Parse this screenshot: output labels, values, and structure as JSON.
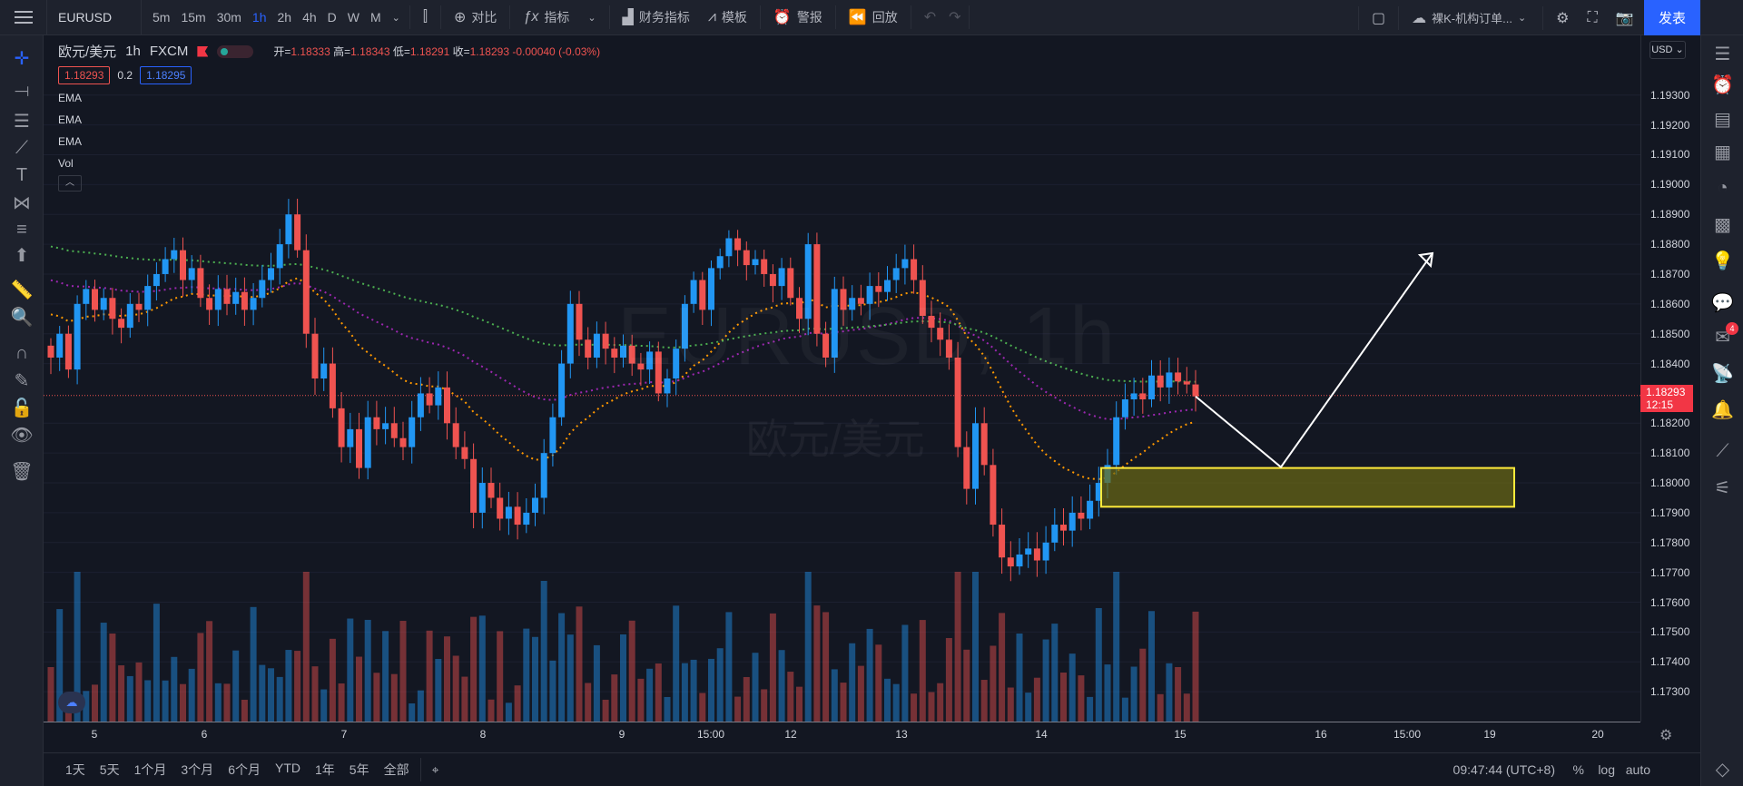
{
  "toolbar": {
    "symbol": "EURUSD",
    "timeframes": [
      "5m",
      "15m",
      "30m",
      "1h",
      "2h",
      "4h",
      "D",
      "W",
      "M"
    ],
    "active_timeframe": "1h",
    "compare_label": "对比",
    "indicators_label": "指标",
    "financials_label": "财务指标",
    "templates_label": "模板",
    "alert_label": "警报",
    "replay_label": "回放",
    "layout_name": "裸K-机构订单...",
    "publish_label": "发表"
  },
  "legend": {
    "pair": "欧元/美元",
    "interval": "1h",
    "source": "FXCM",
    "open_label": "开=",
    "open": "1.18333",
    "high_label": "高=",
    "high": "1.18343",
    "low_label": "低=",
    "low": "1.18291",
    "close_label": "收=",
    "close": "1.18293",
    "change": "-0.00040 (-0.03%)",
    "bid": "1.18293",
    "spread": "0.2",
    "ask": "1.18295",
    "indicators": [
      "EMA",
      "EMA",
      "EMA",
      "Vol"
    ]
  },
  "watermark": {
    "symbol": "EURUSD, 1h",
    "name": "欧元/美元"
  },
  "price_axis": {
    "currency": "USD",
    "labels": [
      "1.19300",
      "1.19200",
      "1.19100",
      "1.19000",
      "1.18900",
      "1.18800",
      "1.18700",
      "1.18600",
      "1.18500",
      "1.18400",
      "1.18200",
      "1.18100",
      "1.18000",
      "1.17900",
      "1.17800",
      "1.17700",
      "1.17600",
      "1.17500",
      "1.17400",
      "1.17300"
    ],
    "current_price": "1.18293",
    "countdown": "12:15"
  },
  "time_axis": {
    "labels": [
      "5",
      "6",
      "7",
      "8",
      "9",
      "15:00",
      "12",
      "13",
      "14",
      "15",
      "16",
      "15:00",
      "19",
      "20"
    ]
  },
  "bottom": {
    "ranges": [
      "1天",
      "5天",
      "1个月",
      "3个月",
      "6个月",
      "YTD",
      "1年",
      "5年",
      "全部"
    ],
    "clock": "09:47:44 (UTC+8)",
    "percent_label": "%",
    "log_label": "log",
    "auto_label": "auto"
  },
  "colors": {
    "up": "#2196f3",
    "down": "#ef5350",
    "ema_fast": "#ff9800",
    "ema_mid": "#9c27b0",
    "ema_slow": "#4caf50",
    "zone_fill": "#6b6a14",
    "zone_border": "#ffeb3b"
  },
  "right_sidebar": {
    "notification_count": "4"
  },
  "chart_data": {
    "type": "candlestick",
    "price_range": [
      1.172,
      1.195
    ],
    "closes": [
      1.1842,
      1.185,
      1.1838,
      1.186,
      1.1865,
      1.1858,
      1.1862,
      1.1855,
      1.1852,
      1.186,
      1.1858,
      1.1866,
      1.187,
      1.1875,
      1.1878,
      1.1868,
      1.1872,
      1.1862,
      1.1858,
      1.1865,
      1.186,
      1.1864,
      1.1858,
      1.1862,
      1.1868,
      1.1872,
      1.188,
      1.189,
      1.1878,
      1.185,
      1.1835,
      1.184,
      1.1825,
      1.1812,
      1.1818,
      1.1805,
      1.1822,
      1.1818,
      1.182,
      1.1815,
      1.1812,
      1.1822,
      1.183,
      1.1826,
      1.1832,
      1.182,
      1.1812,
      1.1808,
      1.179,
      1.18,
      1.1795,
      1.1788,
      1.1792,
      1.1786,
      1.179,
      1.1795,
      1.181,
      1.1822,
      1.184,
      1.186,
      1.1848,
      1.1842,
      1.185,
      1.1845,
      1.1842,
      1.1846,
      1.184,
      1.1838,
      1.1844,
      1.183,
      1.1835,
      1.1845,
      1.186,
      1.1868,
      1.1858,
      1.1872,
      1.1876,
      1.1882,
      1.1878,
      1.1873,
      1.1875,
      1.187,
      1.1866,
      1.1872,
      1.1862,
      1.1855,
      1.188,
      1.185,
      1.1842,
      1.1865,
      1.1858,
      1.1862,
      1.186,
      1.1866,
      1.1864,
      1.1868,
      1.1872,
      1.1875,
      1.1868,
      1.1856,
      1.1852,
      1.1848,
      1.1842,
      1.1812,
      1.1798,
      1.182,
      1.1806,
      1.1786,
      1.1775,
      1.1772,
      1.1776,
      1.1778,
      1.1774,
      1.178,
      1.1786,
      1.1784,
      1.179,
      1.1788,
      1.1794,
      1.18,
      1.1806,
      1.1822,
      1.1828,
      1.183,
      1.1828,
      1.1836,
      1.1832,
      1.1837,
      1.1834,
      1.1833,
      1.1829
    ],
    "ema_fast_start": 1.1858,
    "ema_mid_start": 1.1869,
    "ema_slow_start": 1.188,
    "annotation_zone": [
      1.1792,
      1.1805
    ],
    "projection": {
      "down_to": 1.1805,
      "up_to": 1.1877
    }
  }
}
